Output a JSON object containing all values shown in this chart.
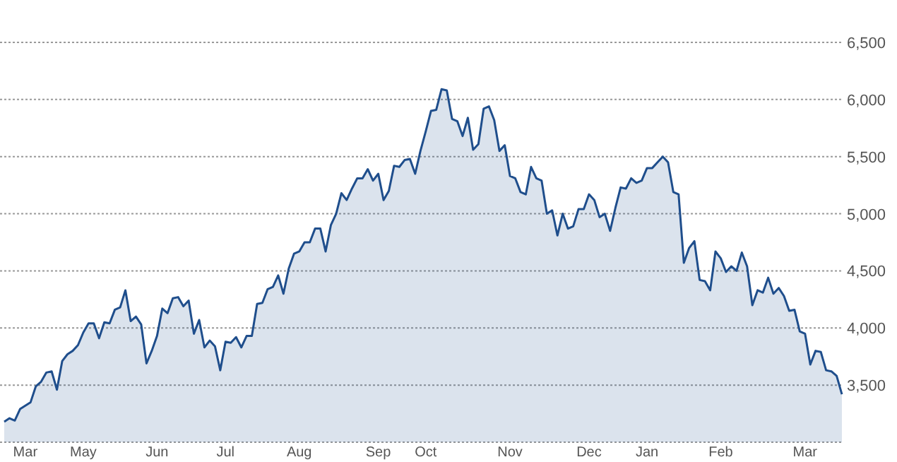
{
  "chart_data": {
    "type": "area",
    "grid": "y",
    "categories": [
      null,
      null,
      null,
      null,
      "Mar",
      null,
      null,
      null,
      null,
      null,
      null,
      null,
      null,
      null,
      null,
      "May",
      null,
      null,
      null,
      null,
      null,
      null,
      null,
      null,
      null,
      null,
      null,
      null,
      null,
      "Jun",
      null,
      null,
      null,
      null,
      null,
      null,
      null,
      null,
      null,
      null,
      null,
      null,
      "Jul",
      null,
      null,
      null,
      null,
      null,
      null,
      null,
      null,
      null,
      null,
      null,
      null,
      null,
      "Aug",
      null,
      null,
      null,
      null,
      null,
      null,
      null,
      null,
      null,
      null,
      null,
      null,
      null,
      null,
      "Sep",
      null,
      null,
      null,
      null,
      null,
      null,
      null,
      null,
      "Oct",
      null,
      null,
      null,
      null,
      null,
      null,
      null,
      null,
      null,
      null,
      null,
      null,
      null,
      null,
      null,
      "Nov",
      null,
      null,
      null,
      null,
      null,
      null,
      null,
      null,
      null,
      null,
      null,
      null,
      null,
      null,
      "Dec",
      null,
      null,
      null,
      null,
      null,
      null,
      null,
      null,
      null,
      null,
      "Jan",
      null,
      null,
      null,
      null,
      null,
      null,
      null,
      null,
      null,
      null,
      null,
      null,
      null,
      "Feb",
      null,
      null,
      null,
      null,
      null,
      null,
      null,
      null,
      null,
      null,
      null,
      null,
      null,
      null,
      null,
      "Mar",
      null,
      null,
      null,
      null,
      null,
      null,
      null
    ],
    "ylim": [
      3000,
      6500
    ],
    "yticks": [
      {
        "value": 3000,
        "label": null
      },
      {
        "value": 3500,
        "label": "3,500"
      },
      {
        "value": 4000,
        "label": "4,000"
      },
      {
        "value": 4500,
        "label": "4,500"
      },
      {
        "value": 5000,
        "label": "5,000"
      },
      {
        "value": 5500,
        "label": "5,500"
      },
      {
        "value": 6000,
        "label": "6,000"
      },
      {
        "value": 6500,
        "label": "6,500"
      }
    ],
    "series": [
      {
        "color": "#1f4e8c",
        "values": [
          3180,
          3210,
          3190,
          3290,
          3320,
          3350,
          3490,
          3530,
          3610,
          3620,
          3460,
          3710,
          3770,
          3800,
          3850,
          3960,
          4040,
          4040,
          3910,
          4050,
          4040,
          4160,
          4180,
          4330,
          4060,
          4100,
          4030,
          3690,
          3800,
          3930,
          4170,
          4130,
          4260,
          4270,
          4190,
          4240,
          3950,
          4070,
          3830,
          3890,
          3840,
          3630,
          3880,
          3870,
          3920,
          3830,
          3930,
          3930,
          4210,
          4220,
          4340,
          4360,
          4460,
          4300,
          4520,
          4650,
          4670,
          4750,
          4750,
          4870,
          4870,
          4670,
          4900,
          5000,
          5180,
          5120,
          5220,
          5310,
          5310,
          5390,
          5290,
          5350,
          5120,
          5200,
          5420,
          5410,
          5470,
          5480,
          5350,
          5550,
          5720,
          5900,
          5910,
          6090,
          6080,
          5830,
          5810,
          5680,
          5840,
          5560,
          5610,
          5920,
          5940,
          5820,
          5550,
          5600,
          5330,
          5310,
          5190,
          5170,
          5410,
          5310,
          5290,
          5000,
          5030,
          4810,
          5000,
          4870,
          4890,
          5040,
          5040,
          5170,
          5120,
          4970,
          5000,
          4850,
          5050,
          5230,
          5220,
          5310,
          5270,
          5290,
          5400,
          5400,
          5450,
          5500,
          5450,
          5190,
          5170,
          4570,
          4700,
          4760,
          4420,
          4410,
          4330,
          4670,
          4610,
          4490,
          4540,
          4500,
          4660,
          4540,
          4200,
          4330,
          4310,
          4440,
          4300,
          4350,
          4280,
          4150,
          4160,
          3970,
          3950,
          3680,
          3800,
          3790,
          3630,
          3620,
          3580,
          3420
        ]
      }
    ]
  }
}
